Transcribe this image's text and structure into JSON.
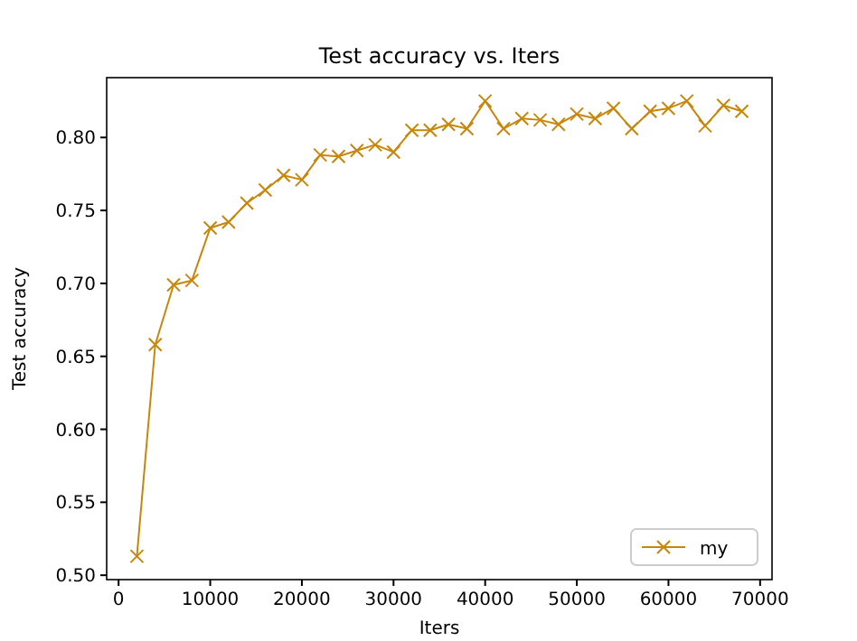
{
  "chart_data": {
    "type": "line",
    "title": "Test accuracy  vs. Iters",
    "xlabel": "Iters",
    "ylabel": "Test accuracy",
    "x": [
      2000,
      4000,
      6000,
      8000,
      10000,
      12000,
      14000,
      16000,
      18000,
      20000,
      22000,
      24000,
      26000,
      28000,
      30000,
      32000,
      34000,
      36000,
      38000,
      40000,
      42000,
      44000,
      46000,
      48000,
      50000,
      52000,
      54000,
      56000,
      58000,
      60000,
      62000,
      64000,
      66000,
      68000
    ],
    "series": [
      {
        "name": "my",
        "color": "#c8860b",
        "values": [
          0.513,
          0.658,
          0.699,
          0.702,
          0.738,
          0.742,
          0.755,
          0.764,
          0.774,
          0.771,
          0.788,
          0.787,
          0.791,
          0.795,
          0.79,
          0.805,
          0.805,
          0.809,
          0.806,
          0.825,
          0.806,
          0.813,
          0.812,
          0.809,
          0.816,
          0.813,
          0.82,
          0.806,
          0.818,
          0.82,
          0.825,
          0.808,
          0.822,
          0.818
        ]
      }
    ],
    "xlim": [
      -1300,
      71300
    ],
    "xticks": [
      0,
      10000,
      20000,
      30000,
      40000,
      50000,
      60000,
      70000
    ],
    "ylim": [
      0.497,
      0.841
    ],
    "yticks": [
      {
        "value": 0.5,
        "label": "0.50"
      },
      {
        "value": 0.55,
        "label": "0.55"
      },
      {
        "value": 0.6,
        "label": "0.60"
      },
      {
        "value": 0.65,
        "label": "0.65"
      },
      {
        "value": 0.7,
        "label": "0.70"
      },
      {
        "value": 0.75,
        "label": "0.75"
      },
      {
        "value": 0.8,
        "label": "0.80"
      }
    ],
    "marker": "cross",
    "line_style": "solid",
    "grid": false,
    "legend": "bottom right"
  }
}
